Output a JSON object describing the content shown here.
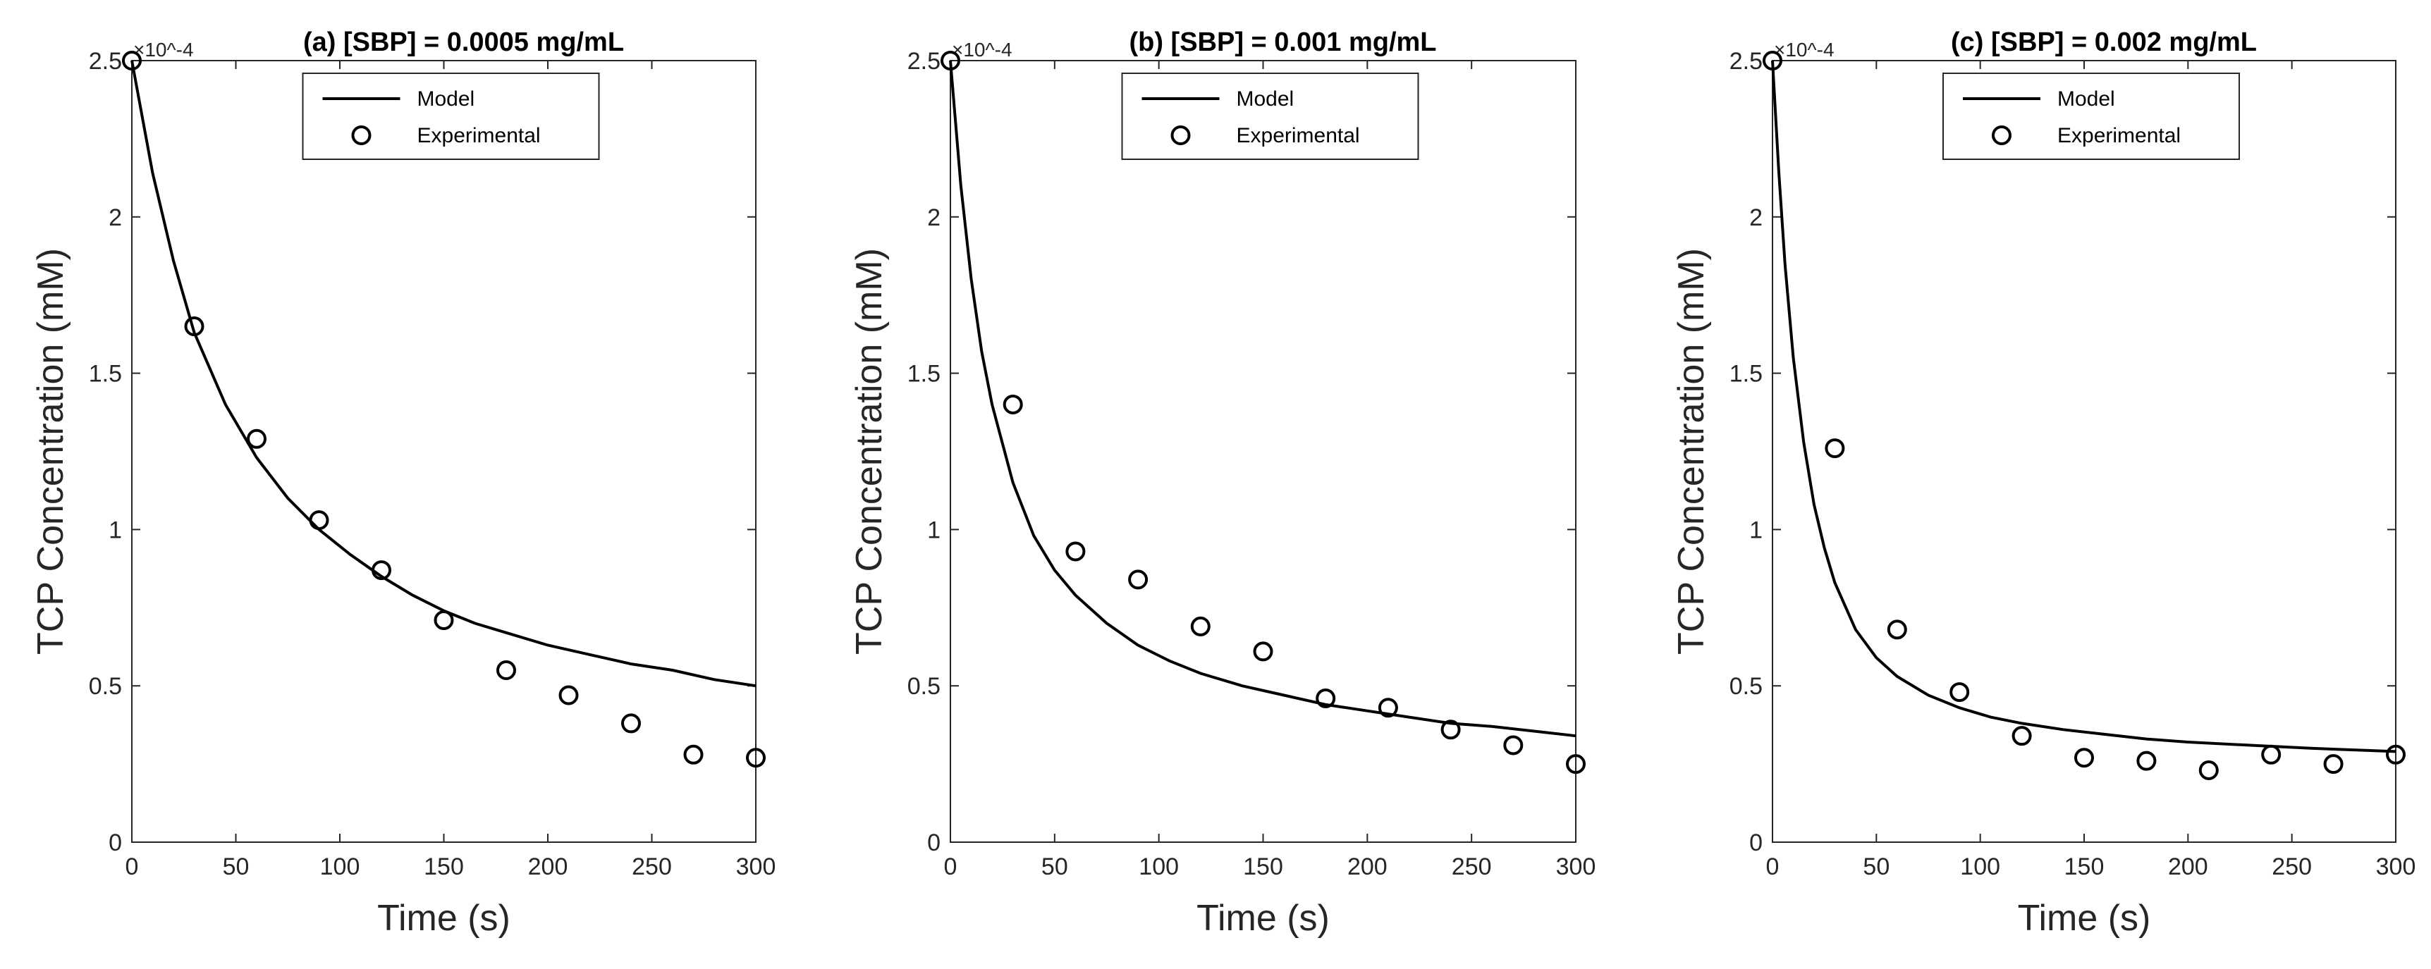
{
  "chart_data": [
    {
      "type": "line",
      "title": "(a) [SBP] = 0.0005 mg/mL",
      "xlabel": "Time (s)",
      "ylabel": "TCP Concentration (mM)",
      "xlim": [
        0,
        300
      ],
      "ylim": [
        0,
        2.5
      ],
      "y_exponent": "×10^-4",
      "xticks": [
        0,
        50,
        100,
        150,
        200,
        250,
        300
      ],
      "yticks": [
        0,
        0.5,
        1,
        1.5,
        2,
        2.5
      ],
      "legend": [
        "Model",
        "Experimental"
      ],
      "series": [
        {
          "name": "Model",
          "style": "line",
          "x": [
            0,
            10,
            20,
            30,
            45,
            60,
            75,
            90,
            105,
            120,
            135,
            150,
            165,
            180,
            200,
            220,
            240,
            260,
            280,
            300
          ],
          "y": [
            2.5,
            2.14,
            1.86,
            1.63,
            1.4,
            1.23,
            1.1,
            1.0,
            0.92,
            0.85,
            0.79,
            0.74,
            0.7,
            0.67,
            0.63,
            0.6,
            0.57,
            0.55,
            0.52,
            0.5
          ]
        },
        {
          "name": "Experimental",
          "style": "marker",
          "x": [
            0,
            30,
            60,
            90,
            120,
            150,
            180,
            210,
            240,
            270,
            300
          ],
          "y": [
            2.5,
            1.65,
            1.29,
            1.03,
            0.87,
            0.71,
            0.55,
            0.47,
            0.38,
            0.28,
            0.27
          ]
        }
      ]
    },
    {
      "type": "line",
      "title": "(b) [SBP] = 0.001 mg/mL",
      "xlabel": "Time (s)",
      "ylabel": "TCP Concentration (mM)",
      "xlim": [
        0,
        300
      ],
      "ylim": [
        0,
        2.5
      ],
      "y_exponent": "×10^-4",
      "xticks": [
        0,
        50,
        100,
        150,
        200,
        250,
        300
      ],
      "yticks": [
        0,
        0.5,
        1,
        1.5,
        2,
        2.5
      ],
      "legend": [
        "Model",
        "Experimental"
      ],
      "series": [
        {
          "name": "Model",
          "style": "line",
          "x": [
            0,
            5,
            10,
            15,
            20,
            30,
            40,
            50,
            60,
            75,
            90,
            105,
            120,
            140,
            160,
            180,
            200,
            220,
            240,
            260,
            280,
            300
          ],
          "y": [
            2.5,
            2.1,
            1.8,
            1.57,
            1.4,
            1.15,
            0.98,
            0.87,
            0.79,
            0.7,
            0.63,
            0.58,
            0.54,
            0.5,
            0.47,
            0.44,
            0.42,
            0.4,
            0.38,
            0.37,
            0.355,
            0.34
          ]
        },
        {
          "name": "Experimental",
          "style": "marker",
          "x": [
            0,
            30,
            60,
            90,
            120,
            150,
            180,
            210,
            240,
            270,
            300
          ],
          "y": [
            2.5,
            1.4,
            0.93,
            0.84,
            0.69,
            0.61,
            0.46,
            0.43,
            0.36,
            0.31,
            0.25
          ]
        }
      ]
    },
    {
      "type": "line",
      "title": "(c) [SBP] = 0.002 mg/mL",
      "xlabel": "Time (s)",
      "ylabel": "TCP Concentration (mM)",
      "xlim": [
        0,
        300
      ],
      "ylim": [
        0,
        2.5
      ],
      "y_exponent": "×10^-4",
      "xticks": [
        0,
        50,
        100,
        150,
        200,
        250,
        300
      ],
      "yticks": [
        0,
        0.5,
        1,
        1.5,
        2,
        2.5
      ],
      "legend": [
        "Model",
        "Experimental"
      ],
      "series": [
        {
          "name": "Model",
          "style": "line",
          "x": [
            0,
            3,
            6,
            10,
            15,
            20,
            25,
            30,
            40,
            50,
            60,
            75,
            90,
            105,
            120,
            140,
            160,
            180,
            200,
            230,
            260,
            300
          ],
          "y": [
            2.5,
            2.15,
            1.85,
            1.55,
            1.28,
            1.08,
            0.94,
            0.83,
            0.68,
            0.59,
            0.53,
            0.47,
            0.43,
            0.4,
            0.38,
            0.36,
            0.345,
            0.33,
            0.32,
            0.31,
            0.3,
            0.29
          ]
        },
        {
          "name": "Experimental",
          "style": "marker",
          "x": [
            0,
            30,
            60,
            90,
            120,
            150,
            180,
            210,
            240,
            270,
            300
          ],
          "y": [
            2.5,
            1.26,
            0.68,
            0.48,
            0.34,
            0.27,
            0.26,
            0.23,
            0.28,
            0.25,
            0.28
          ]
        }
      ]
    }
  ]
}
